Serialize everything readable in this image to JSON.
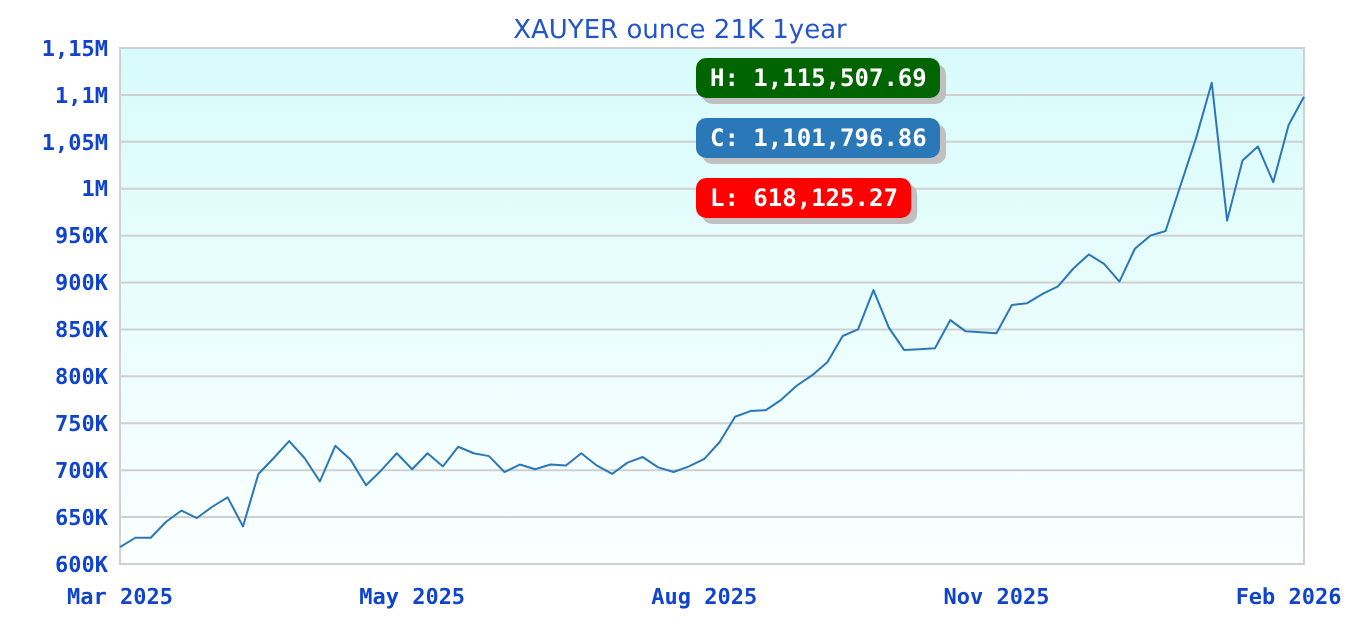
{
  "chart_data": {
    "type": "line",
    "title": "XAUYER ounce 21K 1year",
    "categories": [
      "Mar 2025",
      null,
      null,
      null,
      null,
      null,
      null,
      null,
      null,
      null,
      null,
      null,
      null,
      null,
      null,
      null,
      null,
      null,
      null,
      "May 2025",
      null,
      null,
      null,
      null,
      null,
      null,
      null,
      null,
      null,
      null,
      null,
      null,
      null,
      null,
      null,
      null,
      null,
      null,
      "Aug 2025",
      null,
      null,
      null,
      null,
      null,
      null,
      null,
      null,
      null,
      null,
      null,
      null,
      null,
      null,
      null,
      null,
      null,
      null,
      "Nov 2025",
      null,
      null,
      null,
      null,
      null,
      null,
      null,
      null,
      null,
      null,
      null,
      null,
      null,
      null,
      null,
      null,
      null,
      null,
      "Feb 2026",
      null
    ],
    "series": [
      {
        "color": "#2a78b8",
        "values": [
          618000,
          628000,
          628000,
          645000,
          657000,
          649000,
          661000,
          671000,
          640000,
          696000,
          713000,
          731000,
          713000,
          688000,
          726000,
          711000,
          684000,
          700000,
          718000,
          701000,
          718000,
          704000,
          725000,
          718000,
          715000,
          698000,
          706000,
          701000,
          706000,
          705000,
          718000,
          705000,
          696000,
          708000,
          714000,
          703000,
          698000,
          704000,
          712000,
          730000,
          757000,
          763000,
          764000,
          775000,
          790000,
          801000,
          815000,
          843000,
          850000,
          892000,
          852000,
          828000,
          829000,
          830000,
          860000,
          848000,
          847000,
          846000,
          876000,
          878000,
          888000,
          896000,
          915000,
          930000,
          920000,
          901000,
          936000,
          950000,
          955000,
          1005000,
          1055000,
          1113000,
          966000,
          1030000,
          1045000,
          1007000,
          1068000,
          1098000
        ]
      }
    ],
    "ylim": [
      600000,
      1150000
    ],
    "yticks": [
      {
        "value": 600000,
        "label": "600K"
      },
      {
        "value": 650000,
        "label": "650K"
      },
      {
        "value": 700000,
        "label": "700K"
      },
      {
        "value": 750000,
        "label": "750K"
      },
      {
        "value": 800000,
        "label": "800K"
      },
      {
        "value": 850000,
        "label": "850K"
      },
      {
        "value": 900000,
        "label": "900K"
      },
      {
        "value": 950000,
        "label": "950K"
      },
      {
        "value": 1000000,
        "label": "1M"
      },
      {
        "value": 1050000,
        "label": "1,05M"
      },
      {
        "value": 1100000,
        "label": "1,1M"
      },
      {
        "value": 1150000,
        "label": "1,15M"
      }
    ],
    "grid": "y",
    "annotations": [
      "H: 1,115,507.69",
      "C: 1,101,796.86",
      "L: 618,125.27"
    ]
  }
}
